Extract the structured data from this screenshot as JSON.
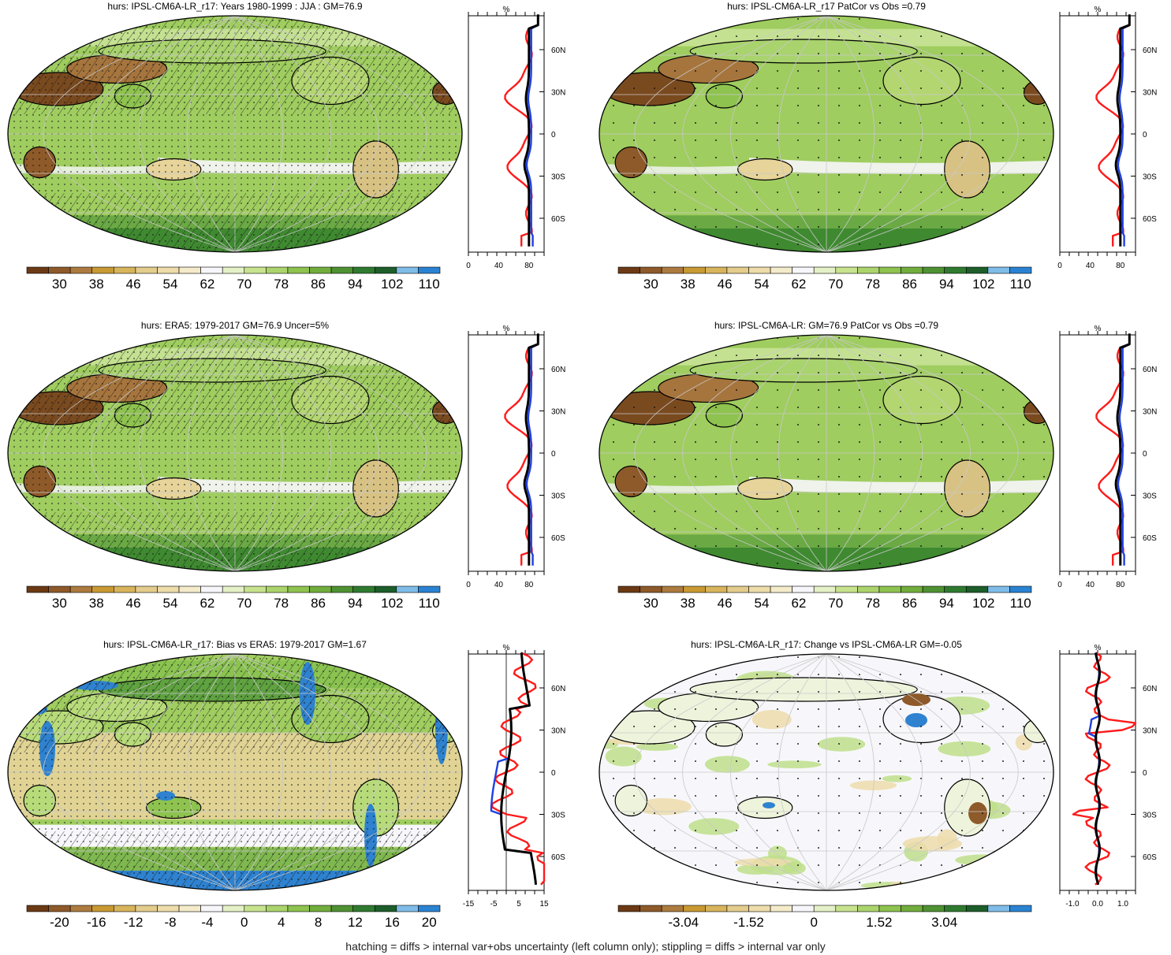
{
  "panels": [
    {
      "title": "hurs: IPSL-CM6A-LR_r17: Years 1980-1999 : JJA : GM=76.9",
      "kind": "clim",
      "hatch": true,
      "stipple": "dense",
      "profile_unit": "%",
      "profile_xticks": [
        "0",
        "40",
        "80"
      ],
      "profile_xvals": [
        0,
        40,
        80
      ],
      "profile_xlim": [
        0,
        100
      ],
      "colorbar_labels": [
        "30",
        "38",
        "46",
        "54",
        "62",
        "70",
        "78",
        "86",
        "94",
        "102",
        "110"
      ],
      "colorbar_colors": [
        "#6b3a14",
        "#8e5a2a",
        "#ad7b3f",
        "#c99a33",
        "#d8b55c",
        "#e4cc8c",
        "#eedcaa",
        "#f4ebcb",
        "#f7f7fb",
        "#e4f1c6",
        "#c8e38e",
        "#acd46c",
        "#8ec34f",
        "#71ad3c",
        "#4f9233",
        "#2f7a2f",
        "#1d5e2a",
        "#7fbde8",
        "#2a82d2"
      ]
    },
    {
      "title": "hurs: IPSL-CM6A-LR_r17 PatCor vs Obs =0.79",
      "kind": "clim",
      "hatch": false,
      "stipple": "sparse",
      "profile_unit": "%",
      "profile_xticks": [
        "0",
        "40",
        "80"
      ],
      "profile_xvals": [
        0,
        40,
        80
      ],
      "profile_xlim": [
        0,
        100
      ],
      "colorbar_labels": [
        "30",
        "38",
        "46",
        "54",
        "62",
        "70",
        "78",
        "86",
        "94",
        "102",
        "110"
      ],
      "colorbar_colors": [
        "#6b3a14",
        "#8e5a2a",
        "#ad7b3f",
        "#c99a33",
        "#d8b55c",
        "#e4cc8c",
        "#eedcaa",
        "#f4ebcb",
        "#f7f7fb",
        "#e4f1c6",
        "#c8e38e",
        "#acd46c",
        "#8ec34f",
        "#71ad3c",
        "#4f9233",
        "#2f7a2f",
        "#1d5e2a",
        "#7fbde8",
        "#2a82d2"
      ]
    },
    {
      "title": "hurs: ERA5: 1979-2017 GM=76.9 Uncer=5%",
      "kind": "clim",
      "hatch": true,
      "stipple": "dense",
      "profile_unit": "%",
      "profile_xticks": [
        "0",
        "40",
        "80"
      ],
      "profile_xvals": [
        0,
        40,
        80
      ],
      "profile_xlim": [
        0,
        100
      ],
      "colorbar_labels": [
        "30",
        "38",
        "46",
        "54",
        "62",
        "70",
        "78",
        "86",
        "94",
        "102",
        "110"
      ],
      "colorbar_colors": [
        "#6b3a14",
        "#8e5a2a",
        "#ad7b3f",
        "#c99a33",
        "#d8b55c",
        "#e4cc8c",
        "#eedcaa",
        "#f4ebcb",
        "#f7f7fb",
        "#e4f1c6",
        "#c8e38e",
        "#acd46c",
        "#8ec34f",
        "#71ad3c",
        "#4f9233",
        "#2f7a2f",
        "#1d5e2a",
        "#7fbde8",
        "#2a82d2"
      ]
    },
    {
      "title": "hurs: IPSL-CM6A-LR: GM=76.9 PatCor vs Obs =0.79",
      "kind": "clim",
      "hatch": false,
      "stipple": "sparse",
      "profile_unit": "%",
      "profile_xticks": [
        "0",
        "40",
        "80"
      ],
      "profile_xvals": [
        0,
        40,
        80
      ],
      "profile_xlim": [
        0,
        100
      ],
      "colorbar_labels": [
        "30",
        "38",
        "46",
        "54",
        "62",
        "70",
        "78",
        "86",
        "94",
        "102",
        "110"
      ],
      "colorbar_colors": [
        "#6b3a14",
        "#8e5a2a",
        "#ad7b3f",
        "#c99a33",
        "#d8b55c",
        "#e4cc8c",
        "#eedcaa",
        "#f4ebcb",
        "#f7f7fb",
        "#e4f1c6",
        "#c8e38e",
        "#acd46c",
        "#8ec34f",
        "#71ad3c",
        "#4f9233",
        "#2f7a2f",
        "#1d5e2a",
        "#7fbde8",
        "#2a82d2"
      ]
    },
    {
      "title": "hurs: IPSL-CM6A-LR_r17: Bias vs ERA5: 1979-2017 GM=1.67",
      "kind": "bias",
      "hatch": true,
      "stipple": "dense",
      "profile_unit": "%",
      "profile_xticks": [
        "-15",
        "-5",
        "5",
        "15"
      ],
      "profile_xvals": [
        -15,
        -5,
        5,
        15
      ],
      "profile_xlim": [
        -15,
        15
      ],
      "profile_zero_line": true,
      "colorbar_labels": [
        "-20",
        "-16",
        "-12",
        "-8",
        "-4",
        "0",
        "4",
        "8",
        "12",
        "16",
        "20"
      ],
      "colorbar_colors": [
        "#6b3a14",
        "#8e5a2a",
        "#ad7b3f",
        "#c99a33",
        "#d8b55c",
        "#e4cc8c",
        "#eedcaa",
        "#f4ebcb",
        "#f7f7fb",
        "#e4f1c6",
        "#c8e38e",
        "#acd46c",
        "#8ec34f",
        "#71ad3c",
        "#4f9233",
        "#2f7a2f",
        "#1d5e2a",
        "#7fbde8",
        "#2a82d2"
      ]
    },
    {
      "title": "hurs: IPSL-CM6A-LR_r17: Change vs IPSL-CM6A-LR GM=-0.05",
      "kind": "change",
      "hatch": false,
      "stipple": "sparse",
      "profile_unit": "%",
      "profile_xticks": [
        "-1.0",
        "0.0",
        "1.0"
      ],
      "profile_xvals": [
        -1,
        0,
        1
      ],
      "profile_xlim": [
        -1.5,
        1.5
      ],
      "colorbar_labels": [
        "-3.04",
        "-1.52",
        "0",
        "1.52",
        "3.04"
      ],
      "colorbar_label_slots": [
        2,
        5,
        8,
        11,
        14
      ],
      "colorbar_colors": [
        "#6b3a14",
        "#8e5a2a",
        "#ad7b3f",
        "#c99a33",
        "#d8b55c",
        "#e4cc8c",
        "#eedcaa",
        "#f4ebcb",
        "#f7f7fb",
        "#e4f1c6",
        "#c8e38e",
        "#acd46c",
        "#8ec34f",
        "#71ad3c",
        "#4f9233",
        "#2f7a2f",
        "#1d5e2a",
        "#7fbde8",
        "#2a82d2"
      ]
    }
  ],
  "lat_labels": [
    "60N",
    "30N",
    "0",
    "30S",
    "60S"
  ],
  "lat_values": [
    60,
    30,
    0,
    -30,
    -60
  ],
  "profile_colors": {
    "model": "#000000",
    "ocean": "#1f3fe0",
    "land": "#ff1a1a"
  },
  "map_colors": {
    "ocean_green": "#9fcd5f",
    "ocean_light": "#c4e191",
    "desert": "#7a4a1f",
    "tan": "#e7d49a",
    "white": "#f7f7fb",
    "blue": "#2e82d0",
    "change_bg": "#f7f7fb",
    "change_green": "#bedf89"
  },
  "footer": "hatching = diffs > internal var+obs uncertainty (left column only); stippling = diffs > internal var only"
}
